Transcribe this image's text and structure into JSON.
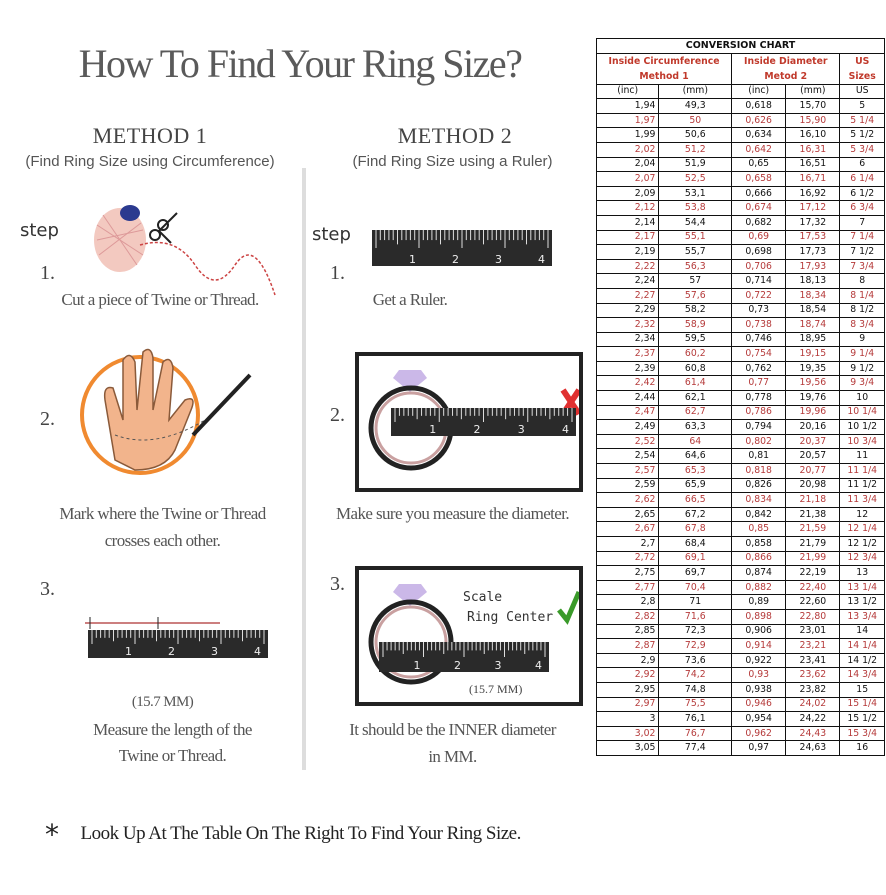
{
  "title": "How To Find Your Ring Size?",
  "method1": {
    "heading": "METHOD 1",
    "subtitle": "(Find Ring Size using Circumference)",
    "step_label": "step",
    "steps": [
      {
        "n": "1.",
        "text": "Cut a piece of  Twine or Thread."
      },
      {
        "n": "2.",
        "text1": "Mark where the Twine or Thread",
        "text2": "crosses each other."
      },
      {
        "n": "3.",
        "measure": "(15.7 MM)",
        "text1": "Measure the length of the",
        "text2": "Twine or Thread."
      }
    ]
  },
  "method2": {
    "heading": "METHOD 2",
    "subtitle": "(Find Ring Size using a Ruler)",
    "step_label": "step",
    "steps": [
      {
        "n": "1.",
        "text": "Get a Ruler."
      },
      {
        "n": "2.",
        "text": "Make sure you measure the diameter."
      },
      {
        "n": "3.",
        "scale": "Scale",
        "ring_center": "Ring Center",
        "measure": "(15.7 MM)",
        "text1": "It should be the INNER diameter",
        "text2": "in MM."
      }
    ]
  },
  "ruler_labels": [
    "1",
    "2",
    "3",
    "4"
  ],
  "note": "Look Up At The Table On The Right To Find Your Ring Size.",
  "note_symbol": "*",
  "colors": {
    "red": "#b53a3a",
    "check": "#3a9a2a",
    "cross": "#e03030",
    "orange": "#f08a30"
  },
  "table": {
    "title": "CONVERSION CHART",
    "group1": "Inside Circumference Method 1",
    "group2": "Inside Diameter Metod 2",
    "group3": "US Sizes",
    "sub": [
      "(inc)",
      "(mm)",
      "(inc)",
      "(mm)",
      "US"
    ],
    "rows": [
      [
        "1,94",
        "49,3",
        "0,618",
        "15,70",
        "5"
      ],
      [
        "1,97",
        "50",
        "0,626",
        "15,90",
        "5 1/4"
      ],
      [
        "1,99",
        "50,6",
        "0,634",
        "16,10",
        "5 1/2"
      ],
      [
        "2,02",
        "51,2",
        "0,642",
        "16,31",
        "5 3/4"
      ],
      [
        "2,04",
        "51,9",
        "0,65",
        "16,51",
        "6"
      ],
      [
        "2,07",
        "52,5",
        "0,658",
        "16,71",
        "6 1/4"
      ],
      [
        "2,09",
        "53,1",
        "0,666",
        "16,92",
        "6 1/2"
      ],
      [
        "2,12",
        "53,8",
        "0,674",
        "17,12",
        "6 3/4"
      ],
      [
        "2,14",
        "54,4",
        "0,682",
        "17,32",
        "7"
      ],
      [
        "2,17",
        "55,1",
        "0,69",
        "17,53",
        "7 1/4"
      ],
      [
        "2,19",
        "55,7",
        "0,698",
        "17,73",
        "7 1/2"
      ],
      [
        "2,22",
        "56,3",
        "0,706",
        "17,93",
        "7 3/4"
      ],
      [
        "2,24",
        "57",
        "0,714",
        "18,13",
        "8"
      ],
      [
        "2,27",
        "57,6",
        "0,722",
        "18,34",
        "8 1/4"
      ],
      [
        "2,29",
        "58,2",
        "0,73",
        "18,54",
        "8 1/2"
      ],
      [
        "2,32",
        "58,9",
        "0,738",
        "18,74",
        "8 3/4"
      ],
      [
        "2,34",
        "59,5",
        "0,746",
        "18,95",
        "9"
      ],
      [
        "2,37",
        "60,2",
        "0,754",
        "19,15",
        "9 1/4"
      ],
      [
        "2,39",
        "60,8",
        "0,762",
        "19,35",
        "9 1/2"
      ],
      [
        "2,42",
        "61,4",
        "0,77",
        "19,56",
        "9 3/4"
      ],
      [
        "2,44",
        "62,1",
        "0,778",
        "19,76",
        "10"
      ],
      [
        "2,47",
        "62,7",
        "0,786",
        "19,96",
        "10 1/4"
      ],
      [
        "2,49",
        "63,3",
        "0,794",
        "20,16",
        "10 1/2"
      ],
      [
        "2,52",
        "64",
        "0,802",
        "20,37",
        "10 3/4"
      ],
      [
        "2,54",
        "64,6",
        "0,81",
        "20,57",
        "11"
      ],
      [
        "2,57",
        "65,3",
        "0,818",
        "20,77",
        "11 1/4"
      ],
      [
        "2,59",
        "65,9",
        "0,826",
        "20,98",
        "11 1/2"
      ],
      [
        "2,62",
        "66,5",
        "0,834",
        "21,18",
        "11 3/4"
      ],
      [
        "2,65",
        "67,2",
        "0,842",
        "21,38",
        "12"
      ],
      [
        "2,67",
        "67,8",
        "0,85",
        "21,59",
        "12 1/4"
      ],
      [
        "2,7",
        "68,4",
        "0,858",
        "21,79",
        "12 1/2"
      ],
      [
        "2,72",
        "69,1",
        "0,866",
        "21,99",
        "12 3/4"
      ],
      [
        "2,75",
        "69,7",
        "0,874",
        "22,19",
        "13"
      ],
      [
        "2,77",
        "70,4",
        "0,882",
        "22,40",
        "13 1/4"
      ],
      [
        "2,8",
        "71",
        "0,89",
        "22,60",
        "13 1/2"
      ],
      [
        "2,82",
        "71,6",
        "0,898",
        "22,80",
        "13 3/4"
      ],
      [
        "2,85",
        "72,3",
        "0,906",
        "23,01",
        "14"
      ],
      [
        "2,87",
        "72,9",
        "0,914",
        "23,21",
        "14 1/4"
      ],
      [
        "2,9",
        "73,6",
        "0,922",
        "23,41",
        "14 1/2"
      ],
      [
        "2,92",
        "74,2",
        "0,93",
        "23,62",
        "14 3/4"
      ],
      [
        "2,95",
        "74,8",
        "0,938",
        "23,82",
        "15"
      ],
      [
        "2,97",
        "75,5",
        "0,946",
        "24,02",
        "15 1/4"
      ],
      [
        "3",
        "76,1",
        "0,954",
        "24,22",
        "15 1/2"
      ],
      [
        "3,02",
        "76,7",
        "0,962",
        "24,43",
        "15 3/4"
      ],
      [
        "3,05",
        "77,4",
        "0,97",
        "24,63",
        "16"
      ]
    ]
  }
}
